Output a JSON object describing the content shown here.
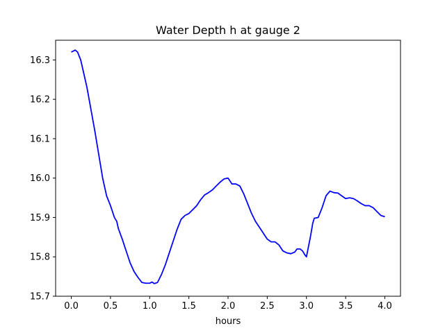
{
  "chart_data": {
    "type": "line",
    "title": "Water Depth h at gauge 2",
    "xlabel": "hours",
    "ylabel": "",
    "xlim": [
      -0.2,
      4.2
    ],
    "ylim": [
      15.7,
      16.35
    ],
    "xticks": [
      0.0,
      0.5,
      1.0,
      1.5,
      2.0,
      2.5,
      3.0,
      3.5,
      4.0
    ],
    "xtick_labels": [
      "0.0",
      "0.5",
      "1.0",
      "1.5",
      "2.0",
      "2.5",
      "3.0",
      "3.5",
      "4.0"
    ],
    "yticks": [
      15.7,
      15.8,
      15.9,
      16.0,
      16.1,
      16.2,
      16.3
    ],
    "ytick_labels": [
      "15.7",
      "15.8",
      "15.9",
      "16.0",
      "16.1",
      "16.2",
      "16.3"
    ],
    "grid": false,
    "legend": "none",
    "series": [
      {
        "color": "#0000ff",
        "x": [
          0.0,
          0.05,
          0.08,
          0.12,
          0.16,
          0.2,
          0.25,
          0.3,
          0.35,
          0.4,
          0.45,
          0.5,
          0.55,
          0.58,
          0.6,
          0.65,
          0.7,
          0.75,
          0.8,
          0.85,
          0.9,
          0.95,
          1.0,
          1.03,
          1.06,
          1.1,
          1.15,
          1.2,
          1.25,
          1.3,
          1.35,
          1.4,
          1.45,
          1.5,
          1.55,
          1.6,
          1.65,
          1.7,
          1.75,
          1.8,
          1.85,
          1.9,
          1.95,
          2.0,
          2.05,
          2.1,
          2.15,
          2.2,
          2.25,
          2.3,
          2.35,
          2.4,
          2.45,
          2.5,
          2.55,
          2.6,
          2.65,
          2.7,
          2.75,
          2.8,
          2.85,
          2.88,
          2.92,
          2.95,
          2.98,
          3.0,
          3.05,
          3.08,
          3.1,
          3.15,
          3.2,
          3.25,
          3.3,
          3.35,
          3.4,
          3.45,
          3.5,
          3.55,
          3.6,
          3.65,
          3.7,
          3.75,
          3.8,
          3.85,
          3.9,
          3.95,
          4.0
        ],
        "y": [
          16.32,
          16.325,
          16.32,
          16.3,
          16.265,
          16.23,
          16.175,
          16.12,
          16.06,
          16.0,
          15.955,
          15.93,
          15.9,
          15.89,
          15.872,
          15.845,
          15.815,
          15.785,
          15.763,
          15.748,
          15.735,
          15.733,
          15.733,
          15.736,
          15.732,
          15.735,
          15.755,
          15.78,
          15.81,
          15.84,
          15.87,
          15.895,
          15.905,
          15.91,
          15.92,
          15.93,
          15.945,
          15.957,
          15.963,
          15.97,
          15.98,
          15.99,
          15.998,
          16.0,
          15.985,
          15.985,
          15.98,
          15.96,
          15.935,
          15.91,
          15.89,
          15.875,
          15.86,
          15.845,
          15.838,
          15.838,
          15.83,
          15.815,
          15.81,
          15.808,
          15.812,
          15.82,
          15.82,
          15.815,
          15.805,
          15.8,
          15.85,
          15.885,
          15.898,
          15.9,
          15.925,
          15.955,
          15.967,
          15.963,
          15.962,
          15.955,
          15.948,
          15.95,
          15.948,
          15.942,
          15.935,
          15.93,
          15.93,
          15.925,
          15.915,
          15.905,
          15.902
        ]
      }
    ]
  }
}
